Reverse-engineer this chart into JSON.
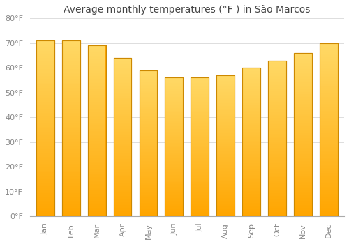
{
  "months": [
    "Jan",
    "Feb",
    "Mar",
    "Apr",
    "May",
    "Jun",
    "Jul",
    "Aug",
    "Sep",
    "Oct",
    "Nov",
    "Dec"
  ],
  "values": [
    71,
    71,
    69,
    64,
    59,
    56,
    56,
    57,
    60,
    63,
    66,
    70
  ],
  "bar_color_top": "#FFD966",
  "bar_color_bottom": "#FFA500",
  "bar_edge_color": "#CC8800",
  "title": "Average monthly temperatures (°F ) in São Marcos",
  "ylim": [
    0,
    80
  ],
  "yticks": [
    0,
    10,
    20,
    30,
    40,
    50,
    60,
    70,
    80
  ],
  "ytick_labels": [
    "0°F",
    "10°F",
    "20°F",
    "30°F",
    "40°F",
    "50°F",
    "60°F",
    "70°F",
    "80°F"
  ],
  "background_color": "#FFFFFF",
  "grid_color": "#DDDDDD",
  "title_fontsize": 10,
  "tick_fontsize": 8,
  "bar_width": 0.7,
  "tick_color": "#888888"
}
